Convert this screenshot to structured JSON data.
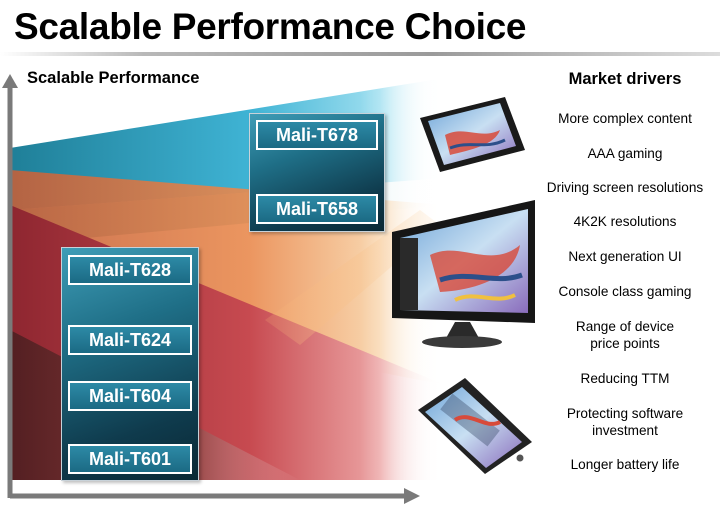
{
  "slide": {
    "title": "Scalable Performance Choice",
    "chart_label": "Scalable Performance"
  },
  "gpu_groups": {
    "high_end": [
      "Mali-T678",
      "Mali-T658"
    ],
    "mainstream": [
      "Mali-T628",
      "Mali-T624",
      "Mali-T604",
      "Mali-T601"
    ]
  },
  "market_drivers": {
    "title": "Market drivers",
    "items": [
      "More complex content",
      "AAA gaming",
      "Driving screen resolutions",
      "4K2K resolutions",
      "Next generation UI",
      "Console class gaming",
      "Range of device\nprice points",
      "Reducing TTM",
      "Protecting software\ninvestment",
      "Longer battery life"
    ]
  },
  "devices": {
    "tablet": "tablet-device",
    "tv": "tv-device",
    "phone": "phone-device"
  },
  "colors": {
    "tablet_band": "#3fb8d8",
    "tv_band": "#f3a86a",
    "phone_band": "#d4575b",
    "chip_fill": "#1f6f87",
    "axis": "#7a7a7a"
  }
}
